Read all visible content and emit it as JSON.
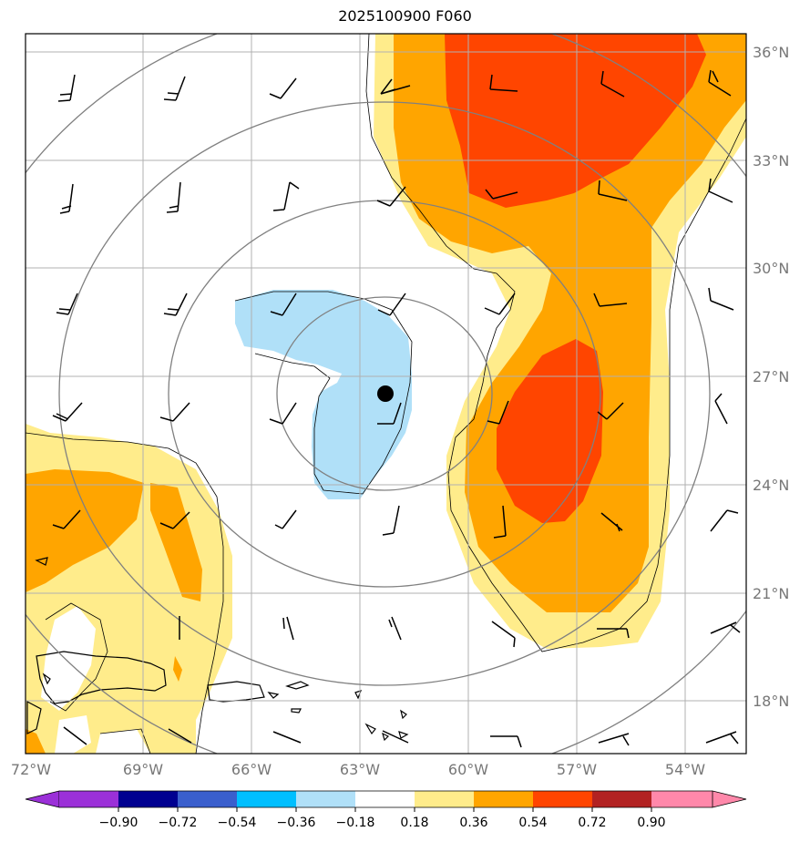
{
  "title": "2025100900 F060",
  "map": {
    "lon_labels": [
      "72°W",
      "69°W",
      "66°W",
      "63°W",
      "60°W",
      "57°W",
      "54°W"
    ],
    "lat_labels": [
      "36°N",
      "33°N",
      "30°N",
      "27°N",
      "24°N",
      "21°N",
      "18°N"
    ],
    "storm_center": {
      "lon": "-62.3",
      "lat": "26.5"
    }
  },
  "colorbar": {
    "levels": [
      "−0.90",
      "−0.72",
      "−0.54",
      "−0.36",
      "−0.18",
      "0.18",
      "0.36",
      "0.54",
      "0.72",
      "0.90"
    ],
    "colors": [
      "#9b30d8",
      "#000090",
      "#3a5fcd",
      "#00bfff",
      "#b0e0f8",
      "#ffffff",
      "#ffec8b",
      "#ffa500",
      "#ff4500",
      "#b22222",
      "#ff88aa"
    ]
  }
}
